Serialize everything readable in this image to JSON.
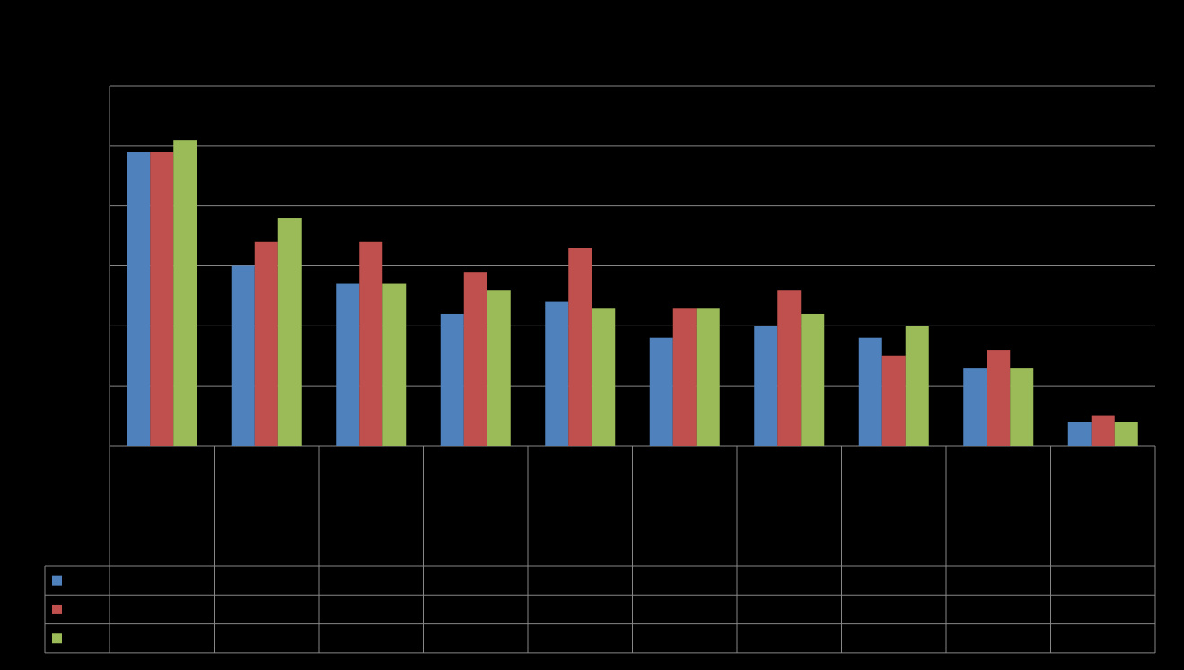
{
  "chart_data": {
    "type": "bar",
    "title": "",
    "xlabel": "",
    "ylabel": "",
    "ylim": [
      0,
      6
    ],
    "grid": true,
    "legend": "data-table-left",
    "categories": [
      "",
      "",
      "",
      "",
      "",
      "",
      "",
      "",
      "",
      ""
    ],
    "series": [
      {
        "color": "#4f81bd",
        "values": [
          4.9,
          3.0,
          2.7,
          2.2,
          2.4,
          1.8,
          2.0,
          1.8,
          1.3,
          0.4
        ]
      },
      {
        "color": "#c0504d",
        "values": [
          4.9,
          3.4,
          3.4,
          2.9,
          3.3,
          2.3,
          2.6,
          1.5,
          1.6,
          0.5
        ]
      },
      {
        "color": "#9bbb59",
        "values": [
          5.1,
          3.8,
          2.7,
          2.6,
          2.3,
          2.3,
          2.2,
          2.0,
          1.3,
          0.4
        ]
      }
    ]
  }
}
